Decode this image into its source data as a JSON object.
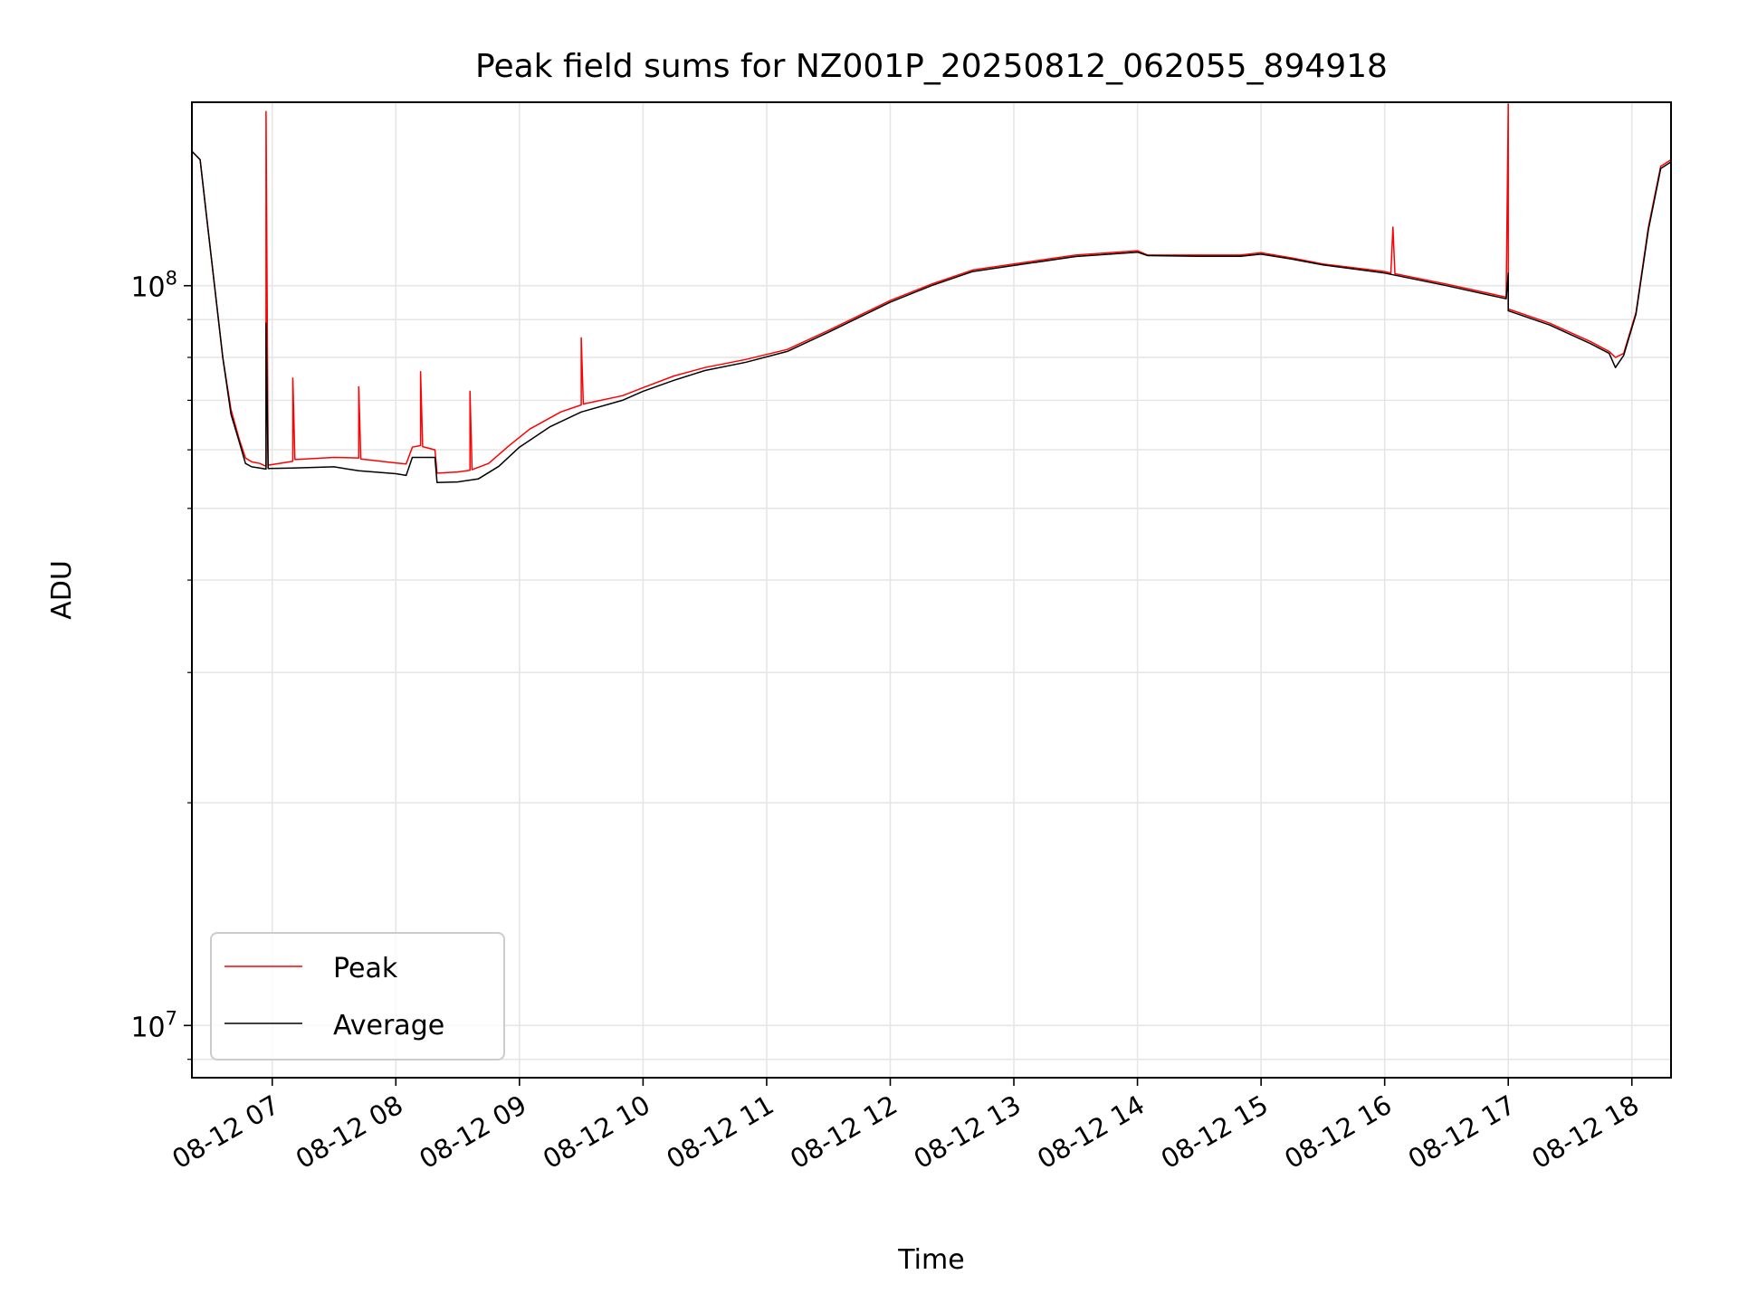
{
  "chart_data": {
    "type": "line",
    "title": "Peak field sums for NZ001P_20250812_062055_894918",
    "xlabel": "Time",
    "ylabel": "ADU",
    "yscale": "log",
    "ylim": [
      8500000,
      177000000
    ],
    "xlim": [
      "08-12 06:21",
      "08-12 18:19"
    ],
    "grid": true,
    "legend_position": "lower-left",
    "x_ticks": [
      "08-12 07",
      "08-12 08",
      "08-12 09",
      "08-12 10",
      "08-12 11",
      "08-12 12",
      "08-12 13",
      "08-12 14",
      "08-12 15",
      "08-12 16",
      "08-12 17",
      "08-12 18"
    ],
    "y_ticks": [
      {
        "base": "10",
        "exp": "7",
        "value": 10000000
      },
      {
        "base": "10",
        "exp": "8",
        "value": 100000000
      }
    ],
    "series": [
      {
        "name": "Peak",
        "color": "#ff0000",
        "points": [
          [
            "08-12 06:21",
            152000000
          ],
          [
            "08-12 06:25",
            148000000
          ],
          [
            "08-12 06:28",
            125000000
          ],
          [
            "08-12 06:32",
            100000000
          ],
          [
            "08-12 06:36",
            80000000
          ],
          [
            "08-12 06:40",
            68000000
          ],
          [
            "08-12 06:44",
            62000000
          ],
          [
            "08-12 06:47",
            58500000
          ],
          [
            "08-12 06:50",
            57800000
          ],
          [
            "08-12 06:54",
            57500000
          ],
          [
            "08-12 06:57",
            57000000
          ],
          [
            "08-12 06:57",
            172000000
          ],
          [
            "08-12 06:58",
            57200000
          ],
          [
            "08-12 07:05",
            57600000
          ],
          [
            "08-12 07:10",
            57900000
          ],
          [
            "08-12 07:10",
            75000000
          ],
          [
            "08-12 07:11",
            58200000
          ],
          [
            "08-12 07:30",
            58600000
          ],
          [
            "08-12 07:42",
            58500000
          ],
          [
            "08-12 07:42",
            73000000
          ],
          [
            "08-12 07:43",
            58300000
          ],
          [
            "08-12 08:00",
            57600000
          ],
          [
            "08-12 08:05",
            57400000
          ],
          [
            "08-12 08:08",
            60500000
          ],
          [
            "08-12 08:12",
            60800000
          ],
          [
            "08-12 08:12",
            76500000
          ],
          [
            "08-12 08:13",
            60600000
          ],
          [
            "08-12 08:19",
            60000000
          ],
          [
            "08-12 08:20",
            55800000
          ],
          [
            "08-12 08:30",
            56000000
          ],
          [
            "08-12 08:36",
            56300000
          ],
          [
            "08-12 08:36",
            72000000
          ],
          [
            "08-12 08:37",
            56400000
          ],
          [
            "08-12 08:45",
            57500000
          ],
          [
            "08-12 08:55",
            60800000
          ],
          [
            "08-12 09:05",
            64000000
          ],
          [
            "08-12 09:20",
            67500000
          ],
          [
            "08-12 09:30",
            69000000
          ],
          [
            "08-12 09:30",
            85000000
          ],
          [
            "08-12 09:31",
            69200000
          ],
          [
            "08-12 09:50",
            71000000
          ],
          [
            "08-12 10:00",
            72800000
          ],
          [
            "08-12 10:15",
            75500000
          ],
          [
            "08-12 10:30",
            77500000
          ],
          [
            "08-12 10:50",
            79500000
          ],
          [
            "08-12 11:10",
            82000000
          ],
          [
            "08-12 11:30",
            87000000
          ],
          [
            "08-12 12:00",
            95500000
          ],
          [
            "08-12 12:20",
            100500000
          ],
          [
            "08-12 12:40",
            105000000
          ],
          [
            "08-12 13:00",
            107000000
          ],
          [
            "08-12 13:30",
            110000000
          ],
          [
            "08-12 14:00",
            111500000
          ],
          [
            "08-12 14:05",
            110000000
          ],
          [
            "08-12 14:30",
            110000000
          ],
          [
            "08-12 14:50",
            110000000
          ],
          [
            "08-12 15:00",
            110800000
          ],
          [
            "08-12 15:15",
            109000000
          ],
          [
            "08-12 15:30",
            107000000
          ],
          [
            "08-12 16:00",
            104500000
          ],
          [
            "08-12 16:03",
            104000000
          ],
          [
            "08-12 16:04",
            120000000
          ],
          [
            "08-12 16:05",
            103800000
          ],
          [
            "08-12 16:30",
            100500000
          ],
          [
            "08-12 16:59",
            96500000
          ],
          [
            "08-12 17:00",
            176000000
          ],
          [
            "08-12 17:00",
            93000000
          ],
          [
            "08-12 17:20",
            89000000
          ],
          [
            "08-12 17:40",
            84000000
          ],
          [
            "08-12 17:49",
            81500000
          ],
          [
            "08-12 17:52",
            80000000
          ],
          [
            "08-12 17:56",
            81000000
          ],
          [
            "08-12 18:02",
            92000000
          ],
          [
            "08-12 18:08",
            120000000
          ],
          [
            "08-12 18:14",
            145000000
          ],
          [
            "08-12 18:19",
            148000000
          ]
        ]
      },
      {
        "name": "Average",
        "color": "#000000",
        "points": [
          [
            "08-12 06:21",
            152000000
          ],
          [
            "08-12 06:25",
            148000000
          ],
          [
            "08-12 06:28",
            125000000
          ],
          [
            "08-12 06:32",
            100000000
          ],
          [
            "08-12 06:36",
            80000000
          ],
          [
            "08-12 06:40",
            67000000
          ],
          [
            "08-12 06:44",
            61500000
          ],
          [
            "08-12 06:47",
            57500000
          ],
          [
            "08-12 06:50",
            56900000
          ],
          [
            "08-12 06:54",
            56700000
          ],
          [
            "08-12 06:57",
            56500000
          ],
          [
            "08-12 06:57",
            89000000
          ],
          [
            "08-12 06:58",
            56600000
          ],
          [
            "08-12 07:10",
            56700000
          ],
          [
            "08-12 07:30",
            56900000
          ],
          [
            "08-12 07:42",
            56200000
          ],
          [
            "08-12 08:00",
            55700000
          ],
          [
            "08-12 08:05",
            55400000
          ],
          [
            "08-12 08:08",
            58600000
          ],
          [
            "08-12 08:19",
            58600000
          ],
          [
            "08-12 08:20",
            54200000
          ],
          [
            "08-12 08:30",
            54300000
          ],
          [
            "08-12 08:40",
            54800000
          ],
          [
            "08-12 08:50",
            57000000
          ],
          [
            "08-12 09:00",
            60500000
          ],
          [
            "08-12 09:15",
            64500000
          ],
          [
            "08-12 09:30",
            67500000
          ],
          [
            "08-12 09:50",
            70000000
          ],
          [
            "08-12 10:00",
            72000000
          ],
          [
            "08-12 10:15",
            74500000
          ],
          [
            "08-12 10:30",
            76800000
          ],
          [
            "08-12 10:50",
            78800000
          ],
          [
            "08-12 11:10",
            81500000
          ],
          [
            "08-12 11:30",
            86500000
          ],
          [
            "08-12 12:00",
            95000000
          ],
          [
            "08-12 12:20",
            100000000
          ],
          [
            "08-12 12:40",
            104500000
          ],
          [
            "08-12 13:00",
            106500000
          ],
          [
            "08-12 13:30",
            109500000
          ],
          [
            "08-12 14:00",
            111000000
          ],
          [
            "08-12 14:05",
            109800000
          ],
          [
            "08-12 14:30",
            109600000
          ],
          [
            "08-12 14:50",
            109600000
          ],
          [
            "08-12 15:00",
            110300000
          ],
          [
            "08-12 15:15",
            108600000
          ],
          [
            "08-12 15:30",
            106700000
          ],
          [
            "08-12 16:00",
            104000000
          ],
          [
            "08-12 16:30",
            100000000
          ],
          [
            "08-12 16:59",
            96000000
          ],
          [
            "08-12 17:00",
            104000000
          ],
          [
            "08-12 17:00",
            92500000
          ],
          [
            "08-12 17:20",
            88500000
          ],
          [
            "08-12 17:40",
            83500000
          ],
          [
            "08-12 17:49",
            81000000
          ],
          [
            "08-12 17:52",
            77500000
          ],
          [
            "08-12 17:56",
            80500000
          ],
          [
            "08-12 18:02",
            91500000
          ],
          [
            "08-12 18:08",
            119000000
          ],
          [
            "08-12 18:14",
            144000000
          ],
          [
            "08-12 18:19",
            147000000
          ]
        ]
      }
    ]
  }
}
